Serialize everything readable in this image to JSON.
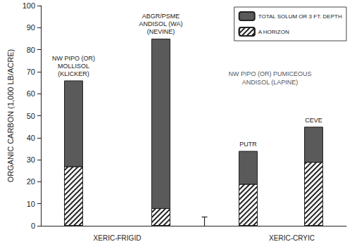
{
  "chart_data": {
    "type": "bar",
    "y_label": "ORGANIC CARBON (1,000 LB/ACRE)",
    "categories": [
      null,
      null,
      null,
      "XERIC-FRIGID",
      null,
      null,
      null,
      null,
      null,
      null,
      null,
      "XERIC-CRYIC",
      null,
      null
    ],
    "series": [
      {
        "name": "TOTAL SOLUM OR 3 FT. DEPTH",
        "color": "#5a5a5a",
        "values": [
          null,
          66,
          null,
          null,
          null,
          85,
          null,
          null,
          null,
          34,
          null,
          null,
          45,
          null
        ],
        "bar_labels": [
          null,
          "NW PIPO (OR)\nMOLLISOL\n(KLICKER)",
          null,
          null,
          null,
          "ABGR/PSME\nANDISOL (WA)\n(NEVINE)",
          null,
          null,
          null,
          "PUTR",
          null,
          null,
          "CEVE",
          null
        ]
      },
      {
        "name": "A HORIZON",
        "color": "#ffffff",
        "values": [
          null,
          27,
          null,
          null,
          null,
          8,
          null,
          null,
          null,
          19,
          null,
          null,
          29,
          null
        ]
      }
    ],
    "annotations": [
      {
        "text": "NW PIPO (OR) PUMICEOUS\nANDISOL (LAPINE)",
        "x": 10,
        "y": 67
      }
    ],
    "error_bar": {
      "x": 7,
      "low": -4,
      "high": 4
    },
    "ylim": [
      0,
      100
    ],
    "yticks": [
      0,
      10,
      20,
      30,
      40,
      50,
      60,
      70,
      80,
      90,
      100
    ],
    "grid": false,
    "legend": "top-right"
  }
}
